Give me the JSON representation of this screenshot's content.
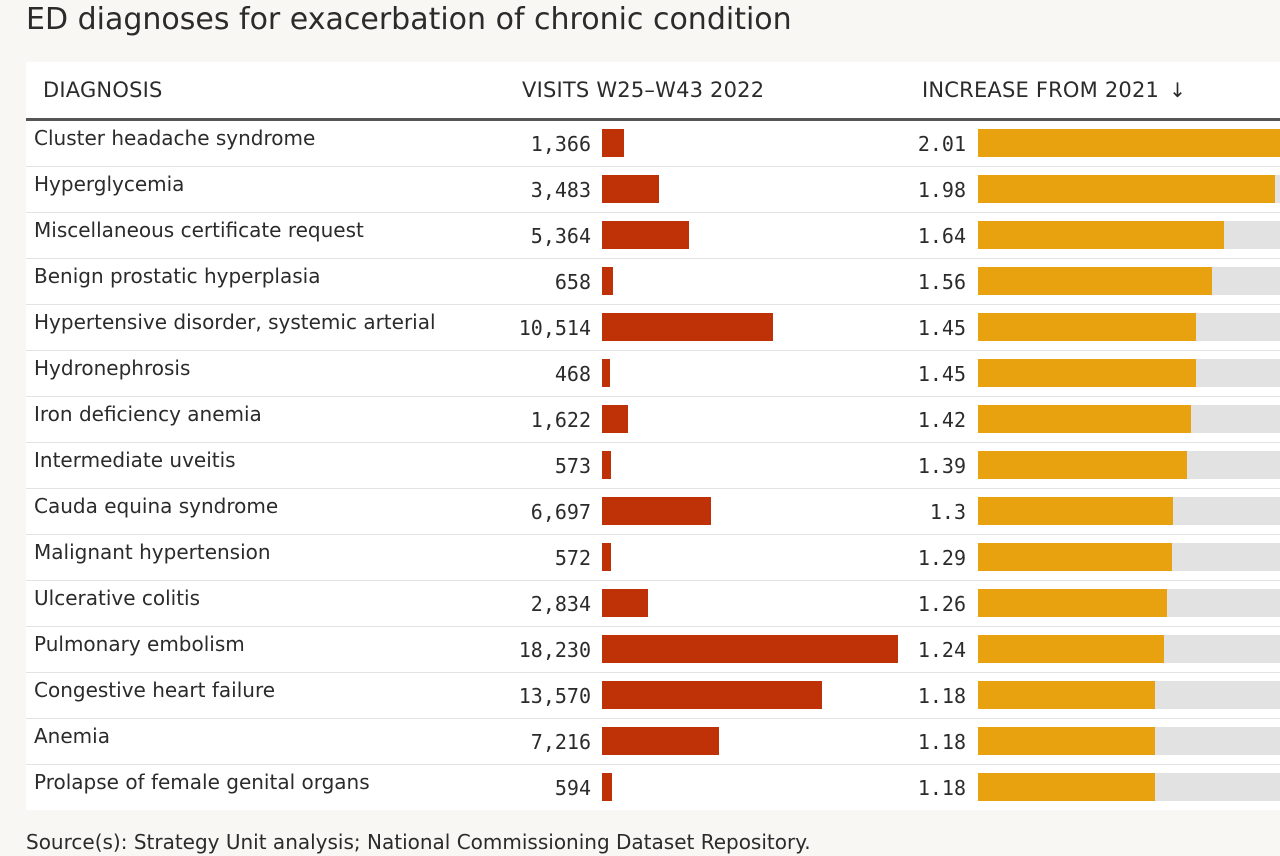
{
  "title": "ED diagnoses for exacerbation of chronic condition",
  "source": "Source(s): Strategy Unit analysis; National Commissioning Dataset Repository.",
  "colors": {
    "visits_bar": "#bf3106",
    "increase_bar": "#e9a20f",
    "increase_track": "#e2e2e2"
  },
  "chart_data": {
    "type": "table",
    "title": "ED diagnoses for exacerbation of chronic condition",
    "columns": {
      "diagnosis": "DIAGNOSIS",
      "visits": "VISITS W25–W43 2022",
      "increase": "INCREASE FROM 2021",
      "sort_icon": "↓"
    },
    "visits_max": 18230,
    "increase_max": 2.01,
    "rows": [
      {
        "diagnosis": "Cluster headache syndrome",
        "visits": 1366,
        "visits_label": "1,366",
        "increase": 2.01,
        "increase_label": "2.01"
      },
      {
        "diagnosis": "Hyperglycemia",
        "visits": 3483,
        "visits_label": "3,483",
        "increase": 1.98,
        "increase_label": "1.98"
      },
      {
        "diagnosis": "Miscellaneous certificate request",
        "visits": 5364,
        "visits_label": "5,364",
        "increase": 1.64,
        "increase_label": "1.64"
      },
      {
        "diagnosis": "Benign prostatic hyperplasia",
        "visits": 658,
        "visits_label": "658",
        "increase": 1.56,
        "increase_label": "1.56"
      },
      {
        "diagnosis": "Hypertensive disorder, systemic arterial",
        "visits": 10514,
        "visits_label": "10,514",
        "increase": 1.45,
        "increase_label": "1.45"
      },
      {
        "diagnosis": "Hydronephrosis",
        "visits": 468,
        "visits_label": "468",
        "increase": 1.45,
        "increase_label": "1.45"
      },
      {
        "diagnosis": "Iron deficiency anemia",
        "visits": 1622,
        "visits_label": "1,622",
        "increase": 1.42,
        "increase_label": "1.42"
      },
      {
        "diagnosis": "Intermediate uveitis",
        "visits": 573,
        "visits_label": "573",
        "increase": 1.39,
        "increase_label": "1.39"
      },
      {
        "diagnosis": "Cauda equina syndrome",
        "visits": 6697,
        "visits_label": "6,697",
        "increase": 1.3,
        "increase_label": "1.3"
      },
      {
        "diagnosis": "Malignant hypertension",
        "visits": 572,
        "visits_label": "572",
        "increase": 1.29,
        "increase_label": "1.29"
      },
      {
        "diagnosis": "Ulcerative colitis",
        "visits": 2834,
        "visits_label": "2,834",
        "increase": 1.26,
        "increase_label": "1.26"
      },
      {
        "diagnosis": "Pulmonary embolism",
        "visits": 18230,
        "visits_label": "18,230",
        "increase": 1.24,
        "increase_label": "1.24"
      },
      {
        "diagnosis": "Congestive heart failure",
        "visits": 13570,
        "visits_label": "13,570",
        "increase": 1.18,
        "increase_label": "1.18"
      },
      {
        "diagnosis": "Anemia",
        "visits": 7216,
        "visits_label": "7,216",
        "increase": 1.18,
        "increase_label": "1.18"
      },
      {
        "diagnosis": "Prolapse of female genital organs",
        "visits": 594,
        "visits_label": "594",
        "increase": 1.18,
        "increase_label": "1.18"
      }
    ]
  }
}
